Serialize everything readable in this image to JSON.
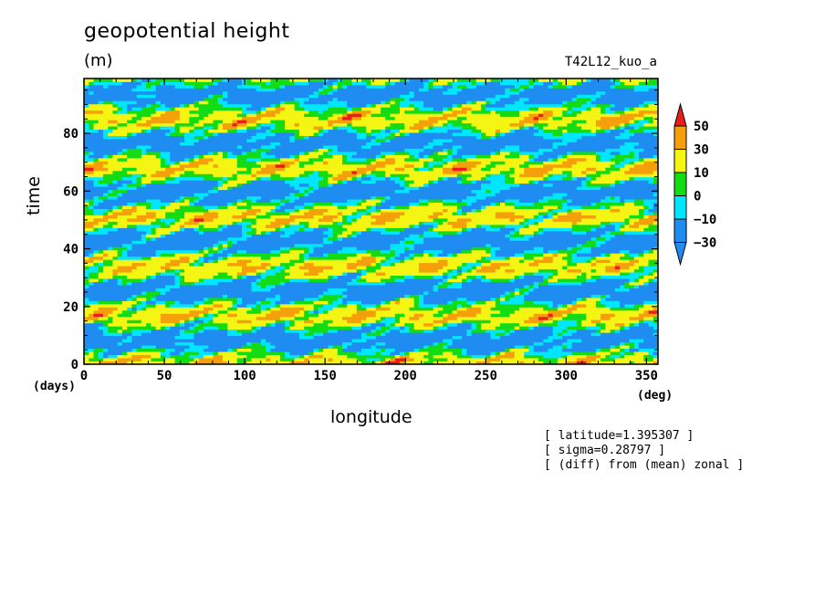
{
  "chart_data": {
    "type": "heatmap",
    "title": "geopotential height",
    "units": "(m)",
    "experiment": "T42L12_kuo_a",
    "xlabel": "longitude",
    "ylabel": "time",
    "x_unit": "(deg)",
    "y_unit": "(days)",
    "xlim": [
      0,
      357.1875
    ],
    "ylim": [
      0,
      99
    ],
    "x_ticks": [
      0,
      50,
      100,
      150,
      200,
      250,
      300,
      350
    ],
    "y_ticks": [
      0,
      20,
      40,
      60,
      80
    ],
    "colorbar": {
      "levels": [
        -30,
        -10,
        0,
        10,
        30,
        50
      ],
      "tick_labels": [
        "−30",
        "−10",
        "0",
        "10",
        "30",
        "50"
      ],
      "colors": [
        "#1e8cf0",
        "#00e6ff",
        "#14dc14",
        "#f5f514",
        "#f5a00a",
        "#eb1e1e"
      ],
      "extend": "both"
    },
    "bands": [
      {
        "lo": -30,
        "hi": -10,
        "color": "#1e8cf0"
      },
      {
        "lo": -10,
        "hi": 0,
        "color": "#00e6ff"
      },
      {
        "lo": 0,
        "hi": 10,
        "color": "#14dc14"
      },
      {
        "lo": 10,
        "hi": 30,
        "color": "#f5f514"
      },
      {
        "lo": 30,
        "hi": 50,
        "color": "#f5a00a"
      }
    ],
    "annotations": [
      "[ latitude=1.395307 ]",
      "[ sigma=0.28797 ]",
      "[ (diff) from (mean) zonal ]"
    ]
  }
}
